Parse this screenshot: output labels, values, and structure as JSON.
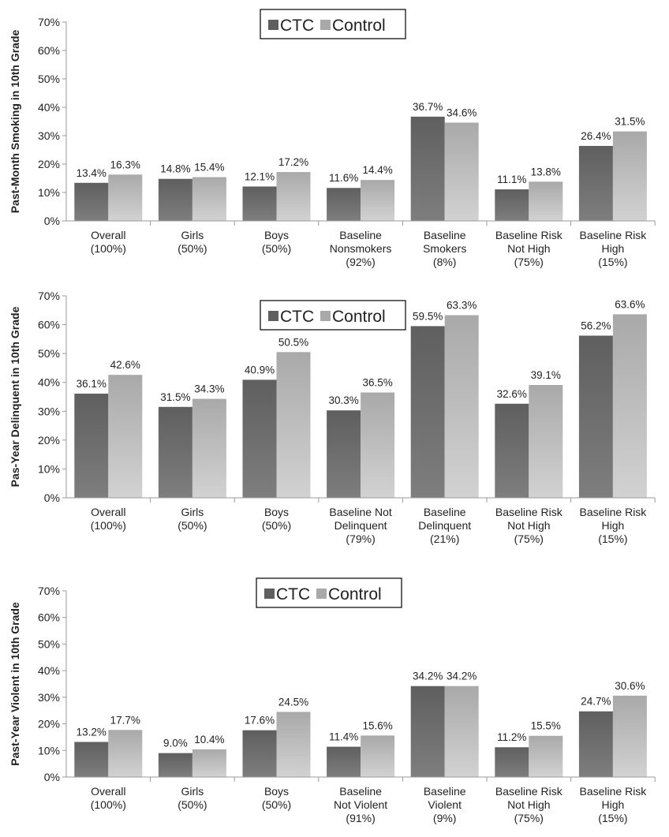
{
  "legend": {
    "ctc_label": "CTC",
    "control_label": "Control"
  },
  "colors": {
    "ctc_top": "#5f5f5f",
    "ctc_bottom": "#7e7e7e",
    "control_top": "#a9a9a9",
    "control_bottom": "#d2d2d2",
    "axis": "#9a9a9a"
  },
  "chart_data": [
    {
      "type": "bar",
      "title": "",
      "ylabel": "Past-Month Smoking in 10th Grade",
      "xlabel": "",
      "ylim": [
        0,
        70
      ],
      "y_ticks": [
        "0%",
        "10%",
        "20%",
        "30%",
        "40%",
        "50%",
        "60%",
        "70%"
      ],
      "grid": false,
      "legend_position": "top-center",
      "categories": [
        [
          "Overall",
          "(100%)"
        ],
        [
          "Girls",
          "(50%)"
        ],
        [
          "Boys",
          "(50%)"
        ],
        [
          "Baseline",
          "Nonsmokers",
          "(92%)"
        ],
        [
          "Baseline",
          "Smokers",
          "(8%)"
        ],
        [
          "Baseline Risk",
          "Not High",
          "(75%)"
        ],
        [
          "Baseline Risk",
          "High",
          "(15%)"
        ]
      ],
      "series": [
        {
          "name": "CTC",
          "values": [
            13.4,
            14.8,
            12.1,
            11.6,
            36.7,
            11.1,
            26.4
          ],
          "labels": [
            "13.4%",
            "14.8%",
            "12.1%",
            "11.6%",
            "36.7%",
            "11.1%",
            "26.4%"
          ]
        },
        {
          "name": "Control",
          "values": [
            16.3,
            15.4,
            17.2,
            14.4,
            34.6,
            13.8,
            31.5
          ],
          "labels": [
            "16.3%",
            "15.4%",
            "17.2%",
            "14.4%",
            "34.6%",
            "13.8%",
            "31.5%"
          ]
        }
      ]
    },
    {
      "type": "bar",
      "title": "",
      "ylabel": "Pas-Year Delinquent in 10th Grade",
      "xlabel": "",
      "ylim": [
        0,
        70
      ],
      "y_ticks": [
        "0%",
        "10%",
        "20%",
        "30%",
        "40%",
        "50%",
        "60%",
        "70%"
      ],
      "grid": false,
      "legend_position": "top-center",
      "categories": [
        [
          "Overall",
          "(100%)"
        ],
        [
          "Girls",
          "(50%)"
        ],
        [
          "Boys",
          "(50%)"
        ],
        [
          "Baseline Not",
          "Delinquent",
          "(79%)"
        ],
        [
          "Baseline",
          "Delinquent",
          "(21%)"
        ],
        [
          "Baseline Risk",
          "Not High",
          "(75%)"
        ],
        [
          "Baseline Risk",
          "High",
          "(15%)"
        ]
      ],
      "series": [
        {
          "name": "CTC",
          "values": [
            36.1,
            31.5,
            40.9,
            30.3,
            59.5,
            32.6,
            56.2
          ],
          "labels": [
            "36.1%",
            "31.5%",
            "40.9%",
            "30.3%",
            "59.5%",
            "32.6%",
            "56.2%"
          ]
        },
        {
          "name": "Control",
          "values": [
            42.6,
            34.3,
            50.5,
            36.5,
            63.3,
            39.1,
            63.6
          ],
          "labels": [
            "42.6%",
            "34.3%",
            "50.5%",
            "36.5%",
            "63.3%",
            "39.1%",
            "63.6%"
          ]
        }
      ]
    },
    {
      "type": "bar",
      "title": "",
      "ylabel": "Past-Year Violent in 10th Grade",
      "xlabel": "",
      "ylim": [
        0,
        70
      ],
      "y_ticks": [
        "0%",
        "10%",
        "20%",
        "30%",
        "40%",
        "50%",
        "60%",
        "70%"
      ],
      "grid": false,
      "legend_position": "top-center",
      "categories": [
        [
          "Overall",
          "(100%)"
        ],
        [
          "Girls",
          "(50%)"
        ],
        [
          "Boys",
          "(50%)"
        ],
        [
          "Baseline",
          "Not Violent",
          "(91%)"
        ],
        [
          "Baseline",
          "Violent",
          "(9%)"
        ],
        [
          "Baseline Risk",
          "Not High",
          "(75%)"
        ],
        [
          "Baseline Risk",
          "High",
          "(15%)"
        ]
      ],
      "series": [
        {
          "name": "CTC",
          "values": [
            13.2,
            9.0,
            17.6,
            11.4,
            34.2,
            11.2,
            24.7
          ],
          "labels": [
            "13.2%",
            "9.0%",
            "17.6%",
            "11.4%",
            "34.2%",
            "11.2%",
            "24.7%"
          ]
        },
        {
          "name": "Control",
          "values": [
            17.7,
            10.4,
            24.5,
            15.6,
            34.2,
            15.5,
            30.6
          ],
          "labels": [
            "17.7%",
            "10.4%",
            "24.5%",
            "15.6%",
            "34.2%",
            "15.5%",
            "30.6%"
          ]
        }
      ]
    }
  ]
}
